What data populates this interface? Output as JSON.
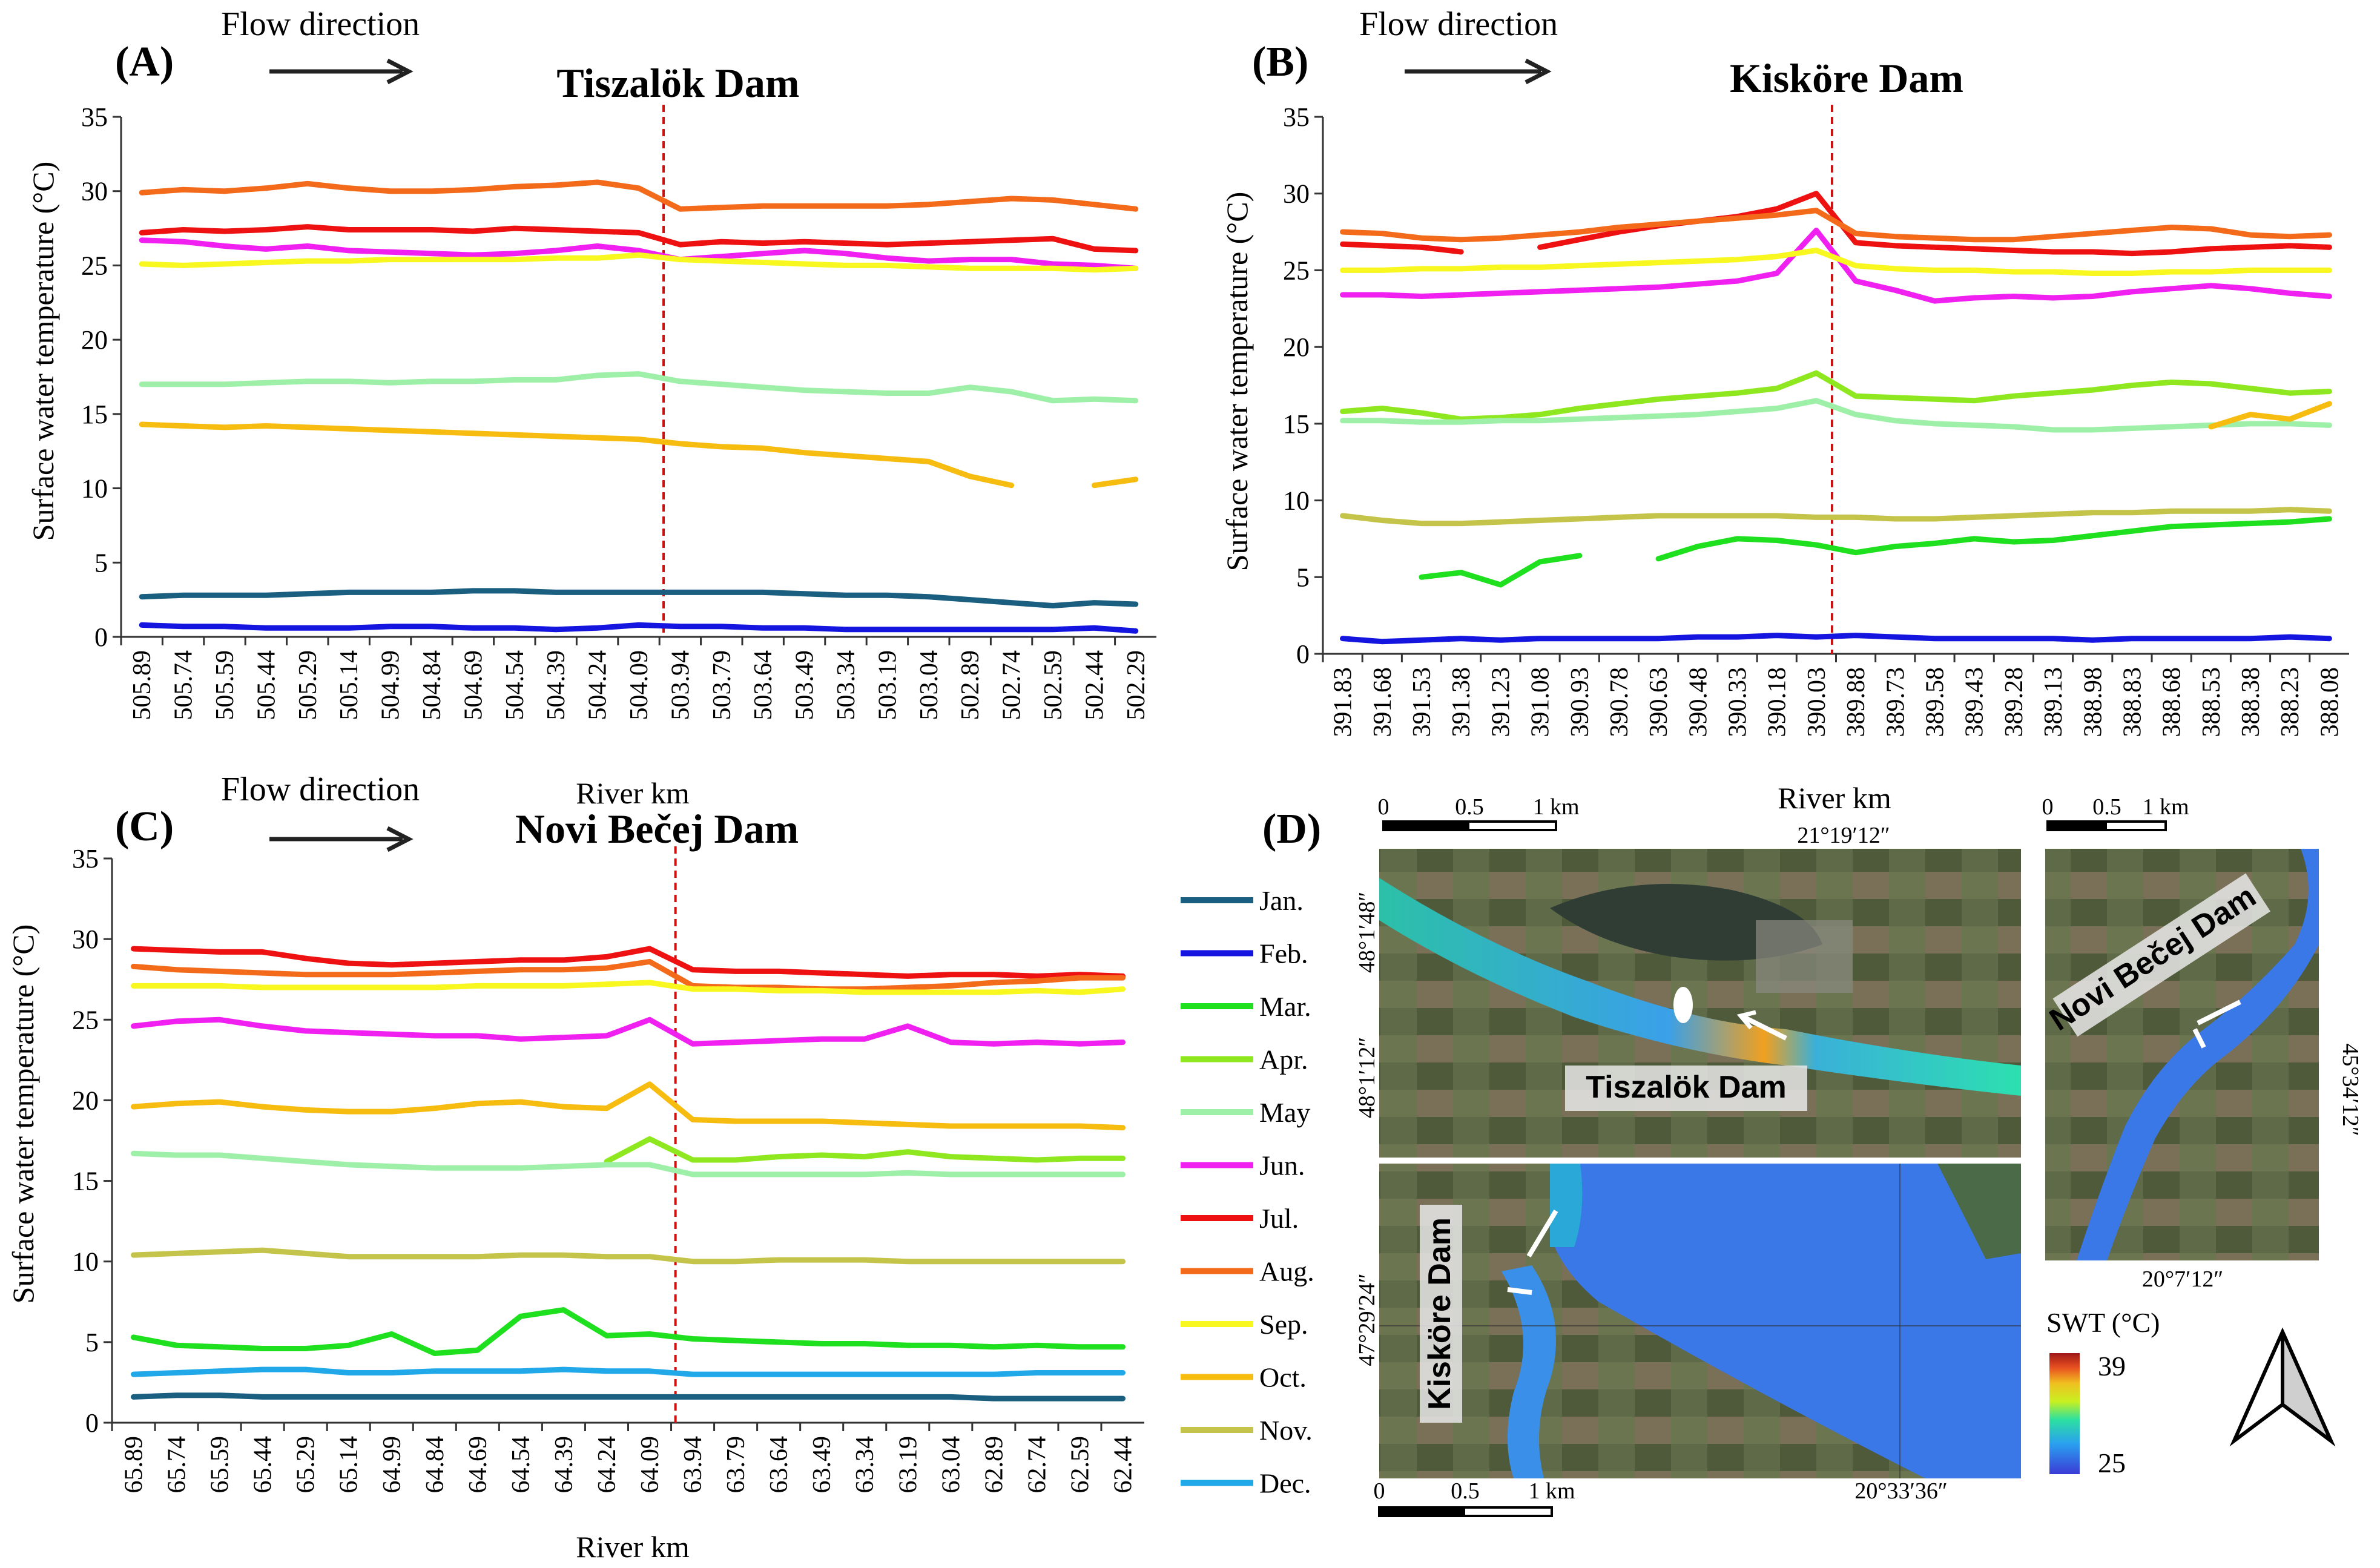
{
  "months": [
    {
      "key": "jan",
      "label": "Jan.",
      "color": "#1a5e80"
    },
    {
      "key": "feb",
      "label": "Feb.",
      "color": "#1515e0"
    },
    {
      "key": "mar",
      "label": "Mar.",
      "color": "#1fe01f"
    },
    {
      "key": "apr",
      "label": "Apr.",
      "color": "#8fe81f"
    },
    {
      "key": "may",
      "label": "May",
      "color": "#9ef0a8"
    },
    {
      "key": "jun",
      "label": "Jun.",
      "color": "#f020f0"
    },
    {
      "key": "jul",
      "label": "Jul.",
      "color": "#ee1111"
    },
    {
      "key": "aug",
      "label": "Aug.",
      "color": "#f36a1a"
    },
    {
      "key": "sep",
      "label": "Sep.",
      "color": "#f8f820"
    },
    {
      "key": "oct",
      "label": "Oct.",
      "color": "#f7bc10"
    },
    {
      "key": "nov",
      "label": "Nov.",
      "color": "#c4c44a"
    },
    {
      "key": "dec",
      "label": "Dec.",
      "color": "#20a8e8"
    }
  ],
  "flow_direction_label": "Flow direction",
  "chart_data": [
    {
      "type": "line",
      "panel": "(A)",
      "title": "Tiszalök Dam",
      "ylabel": "Surface water temperature (°C)",
      "xlabel": "",
      "ylim": [
        0,
        35
      ],
      "yticks": [
        0,
        5,
        10,
        15,
        20,
        25,
        30,
        35
      ],
      "categories": [
        "505.89",
        "505.74",
        "505.59",
        "505.44",
        "505.29",
        "505.14",
        "504.99",
        "504.84",
        "504.69",
        "504.54",
        "504.39",
        "504.24",
        "504.09",
        "503.94",
        "503.79",
        "503.64",
        "503.49",
        "503.34",
        "503.19",
        "503.04",
        "502.89",
        "502.74",
        "502.59",
        "502.44",
        "502.29"
      ],
      "dam_index": 12.6,
      "series": [
        {
          "name": "Jan.",
          "values": [
            2.7,
            2.8,
            2.8,
            2.8,
            2.9,
            3.0,
            3.0,
            3.0,
            3.1,
            3.1,
            3.0,
            3.0,
            3.0,
            3.0,
            3.0,
            3.0,
            2.9,
            2.8,
            2.8,
            2.7,
            2.5,
            2.3,
            2.1,
            2.3,
            2.2
          ]
        },
        {
          "name": "Feb.",
          "values": [
            0.8,
            0.7,
            0.7,
            0.6,
            0.6,
            0.6,
            0.7,
            0.7,
            0.6,
            0.6,
            0.5,
            0.6,
            0.8,
            0.7,
            0.7,
            0.6,
            0.6,
            0.5,
            0.5,
            0.5,
            0.5,
            0.5,
            0.5,
            0.6,
            0.4
          ]
        },
        {
          "name": "May",
          "values": [
            17.0,
            17.0,
            17.0,
            17.1,
            17.2,
            17.2,
            17.1,
            17.2,
            17.2,
            17.3,
            17.3,
            17.6,
            17.7,
            17.2,
            17.0,
            16.8,
            16.6,
            16.5,
            16.4,
            16.4,
            16.8,
            16.5,
            15.9,
            16.0,
            15.9
          ]
        },
        {
          "name": "Jun.",
          "values": [
            26.7,
            26.6,
            26.3,
            26.1,
            26.3,
            26.0,
            25.9,
            25.8,
            25.7,
            25.8,
            26.0,
            26.3,
            26.0,
            25.4,
            25.6,
            25.8,
            26.0,
            25.8,
            25.5,
            25.3,
            25.4,
            25.4,
            25.1,
            25.0,
            24.8
          ]
        },
        {
          "name": "Jul.",
          "values": [
            27.2,
            27.4,
            27.3,
            27.4,
            27.6,
            27.4,
            27.4,
            27.4,
            27.3,
            27.5,
            27.4,
            27.3,
            27.2,
            26.4,
            26.6,
            26.5,
            26.6,
            26.5,
            26.4,
            26.5,
            26.6,
            26.7,
            26.8,
            26.1,
            26.0
          ]
        },
        {
          "name": "Aug.",
          "values": [
            29.9,
            30.1,
            30.0,
            30.2,
            30.5,
            30.2,
            30.0,
            30.0,
            30.1,
            30.3,
            30.4,
            30.6,
            30.2,
            28.8,
            28.9,
            29.0,
            29.0,
            29.0,
            29.0,
            29.1,
            29.3,
            29.5,
            29.4,
            29.1,
            28.8
          ]
        },
        {
          "name": "Sep.",
          "values": [
            25.1,
            25.0,
            25.1,
            25.2,
            25.3,
            25.3,
            25.4,
            25.4,
            25.4,
            25.4,
            25.5,
            25.5,
            25.7,
            25.4,
            25.3,
            25.2,
            25.1,
            25.0,
            25.0,
            24.9,
            24.8,
            24.8,
            24.8,
            24.7,
            24.8
          ]
        },
        {
          "name": "Oct.",
          "values": [
            14.3,
            14.2,
            14.1,
            14.2,
            14.1,
            14.0,
            13.9,
            13.8,
            13.7,
            13.6,
            13.5,
            13.4,
            13.3,
            13.0,
            12.8,
            12.7,
            12.4,
            12.2,
            12.0,
            11.8,
            10.8,
            10.2,
            null,
            10.2,
            10.6
          ]
        }
      ]
    },
    {
      "type": "line",
      "panel": "(B)",
      "title": "Kisköre Dam",
      "ylabel": "Surface water temperature (°C)",
      "xlabel": "River km",
      "ylim": [
        0,
        35
      ],
      "yticks": [
        0,
        5,
        10,
        15,
        20,
        25,
        30,
        35
      ],
      "categories": [
        "391.83",
        "391.68",
        "391.53",
        "391.38",
        "391.23",
        "391.08",
        "390.93",
        "390.78",
        "390.63",
        "390.48",
        "390.33",
        "390.18",
        "390.03",
        "389.88",
        "389.73",
        "389.58",
        "389.43",
        "389.28",
        "389.13",
        "388.98",
        "388.83",
        "388.68",
        "388.53",
        "388.38",
        "388.23",
        "388.08"
      ],
      "dam_index": 12.4,
      "series": [
        {
          "name": "Feb.",
          "values": [
            1.0,
            0.8,
            0.9,
            1.0,
            0.9,
            1.0,
            1.0,
            1.0,
            1.0,
            1.1,
            1.1,
            1.2,
            1.1,
            1.2,
            1.1,
            1.0,
            1.0,
            1.0,
            1.0,
            0.9,
            1.0,
            1.0,
            1.0,
            1.0,
            1.1,
            1.0
          ]
        },
        {
          "name": "Mar.",
          "values": [
            null,
            null,
            5.0,
            5.3,
            4.5,
            6.0,
            6.4,
            null,
            6.2,
            7.0,
            7.5,
            7.4,
            7.1,
            6.6,
            7.0,
            7.2,
            7.5,
            7.3,
            7.4,
            7.7,
            8.0,
            8.3,
            8.4,
            8.5,
            8.6,
            8.8
          ]
        },
        {
          "name": "Apr.",
          "values": [
            15.8,
            16.0,
            15.7,
            15.3,
            15.4,
            15.6,
            16.0,
            16.3,
            16.6,
            16.8,
            17.0,
            17.3,
            18.3,
            16.8,
            16.7,
            16.6,
            16.5,
            16.8,
            17.0,
            17.2,
            17.5,
            17.7,
            17.6,
            17.3,
            17.0,
            17.1
          ]
        },
        {
          "name": "May",
          "values": [
            15.2,
            15.2,
            15.1,
            15.1,
            15.2,
            15.2,
            15.3,
            15.4,
            15.5,
            15.6,
            15.8,
            16.0,
            16.5,
            15.6,
            15.2,
            15.0,
            14.9,
            14.8,
            14.6,
            14.6,
            14.7,
            14.8,
            14.9,
            15.0,
            15.0,
            14.9
          ]
        },
        {
          "name": "Jun.",
          "values": [
            23.4,
            23.4,
            23.3,
            23.4,
            23.5,
            23.6,
            23.7,
            23.8,
            23.9,
            24.1,
            24.3,
            24.8,
            27.6,
            24.3,
            23.7,
            23.0,
            23.2,
            23.3,
            23.2,
            23.3,
            23.6,
            23.8,
            24.0,
            23.8,
            23.5,
            23.3
          ]
        },
        {
          "name": "Jul.",
          "values": [
            26.7,
            26.6,
            26.5,
            26.2,
            null,
            26.5,
            27.0,
            27.5,
            27.9,
            28.2,
            28.5,
            29.0,
            30.0,
            26.8,
            26.6,
            26.5,
            26.4,
            26.3,
            26.2,
            26.2,
            26.1,
            26.2,
            26.4,
            26.5,
            26.6,
            26.5
          ]
        },
        {
          "name": "Aug.",
          "values": [
            27.5,
            27.4,
            27.1,
            27.0,
            27.1,
            27.3,
            27.5,
            27.8,
            28.0,
            28.2,
            28.4,
            28.6,
            28.9,
            27.4,
            27.2,
            27.1,
            27.0,
            27.0,
            27.2,
            27.4,
            27.6,
            27.8,
            27.7,
            27.3,
            27.2,
            27.3
          ]
        },
        {
          "name": "Sep.",
          "values": [
            25.0,
            25.0,
            25.1,
            25.1,
            25.2,
            25.2,
            25.3,
            25.4,
            25.5,
            25.6,
            25.7,
            25.9,
            26.3,
            25.3,
            25.1,
            25.0,
            25.0,
            24.9,
            24.9,
            24.8,
            24.8,
            24.9,
            24.9,
            25.0,
            25.0,
            25.0
          ]
        },
        {
          "name": "Oct.",
          "values": [
            null,
            null,
            null,
            null,
            null,
            null,
            null,
            null,
            null,
            null,
            null,
            null,
            null,
            null,
            null,
            null,
            null,
            null,
            null,
            null,
            null,
            null,
            14.8,
            15.6,
            15.3,
            16.3
          ]
        },
        {
          "name": "Nov.",
          "values": [
            9.0,
            8.7,
            8.5,
            8.5,
            8.6,
            8.7,
            8.8,
            8.9,
            9.0,
            9.0,
            9.0,
            9.0,
            8.9,
            8.9,
            8.8,
            8.8,
            8.9,
            9.0,
            9.1,
            9.2,
            9.2,
            9.3,
            9.3,
            9.3,
            9.4,
            9.3
          ]
        }
      ]
    },
    {
      "type": "line",
      "panel": "(C)",
      "title": "Novi Bečej Dam",
      "ylabel": "Surface water temperature (°C)",
      "xlabel": "River km",
      "ylim": [
        0,
        35
      ],
      "yticks": [
        0,
        5,
        10,
        15,
        20,
        25,
        30,
        35
      ],
      "categories": [
        "65.89",
        "65.74",
        "65.59",
        "65.44",
        "65.29",
        "65.14",
        "64.99",
        "64.84",
        "64.69",
        "64.54",
        "64.39",
        "64.24",
        "64.09",
        "63.94",
        "63.79",
        "63.64",
        "63.49",
        "63.34",
        "63.19",
        "63.04",
        "62.89",
        "62.74",
        "62.59",
        "62.44"
      ],
      "dam_index": 12.6,
      "series": [
        {
          "name": "Jan.",
          "values": [
            1.6,
            1.7,
            1.7,
            1.6,
            1.6,
            1.6,
            1.6,
            1.6,
            1.6,
            1.6,
            1.6,
            1.6,
            1.6,
            1.6,
            1.6,
            1.6,
            1.6,
            1.6,
            1.6,
            1.6,
            1.5,
            1.5,
            1.5,
            1.5
          ]
        },
        {
          "name": "Mar.",
          "values": [
            5.3,
            4.8,
            4.7,
            4.6,
            4.6,
            4.8,
            5.5,
            4.3,
            4.5,
            6.6,
            7.0,
            5.4,
            5.5,
            5.2,
            5.1,
            5.0,
            4.9,
            4.9,
            4.8,
            4.8,
            4.7,
            4.8,
            4.7,
            4.7
          ]
        },
        {
          "name": "Apr.",
          "values": [
            null,
            null,
            null,
            null,
            null,
            null,
            null,
            null,
            null,
            null,
            null,
            16.2,
            17.6,
            16.3,
            16.3,
            16.5,
            16.6,
            16.5,
            16.8,
            16.5,
            16.4,
            16.3,
            16.4,
            16.4
          ]
        },
        {
          "name": "May",
          "values": [
            16.7,
            16.6,
            16.6,
            16.4,
            16.2,
            16.0,
            15.9,
            15.8,
            15.8,
            15.8,
            15.9,
            16.0,
            16.0,
            15.4,
            15.4,
            15.4,
            15.4,
            15.4,
            15.5,
            15.4,
            15.4,
            15.4,
            15.4,
            15.4
          ]
        },
        {
          "name": "Jun.",
          "values": [
            24.6,
            24.9,
            25.0,
            24.6,
            24.3,
            24.2,
            24.1,
            24.0,
            24.0,
            23.8,
            23.9,
            24.0,
            25.0,
            23.5,
            23.6,
            23.7,
            23.8,
            23.8,
            24.6,
            23.6,
            23.5,
            23.6,
            23.5,
            23.6
          ]
        },
        {
          "name": "Jul.",
          "values": [
            29.4,
            29.3,
            29.2,
            29.2,
            28.8,
            28.5,
            28.4,
            28.5,
            28.6,
            28.7,
            28.7,
            28.9,
            29.4,
            28.1,
            28.0,
            28.0,
            27.9,
            27.8,
            27.7,
            27.8,
            27.8,
            27.7,
            27.8,
            27.7
          ]
        },
        {
          "name": "Aug.",
          "values": [
            28.3,
            28.1,
            28.0,
            27.9,
            27.8,
            27.8,
            27.8,
            27.9,
            28.0,
            28.1,
            28.1,
            28.2,
            28.6,
            27.1,
            27.0,
            27.0,
            26.9,
            26.9,
            27.0,
            27.1,
            27.3,
            27.4,
            27.6,
            27.6
          ]
        },
        {
          "name": "Sep.",
          "values": [
            27.1,
            27.1,
            27.1,
            27.0,
            27.0,
            27.0,
            27.0,
            27.0,
            27.1,
            27.1,
            27.1,
            27.2,
            27.3,
            26.9,
            26.9,
            26.8,
            26.8,
            26.7,
            26.7,
            26.7,
            26.7,
            26.8,
            26.7,
            26.9
          ]
        },
        {
          "name": "Oct.",
          "values": [
            19.6,
            19.8,
            19.9,
            19.6,
            19.4,
            19.3,
            19.3,
            19.5,
            19.8,
            19.9,
            19.6,
            19.5,
            21.0,
            18.8,
            18.7,
            18.7,
            18.7,
            18.6,
            18.5,
            18.4,
            18.4,
            18.4,
            18.4,
            18.3
          ]
        },
        {
          "name": "Nov.",
          "values": [
            10.4,
            10.5,
            10.6,
            10.7,
            10.5,
            10.3,
            10.3,
            10.3,
            10.3,
            10.4,
            10.4,
            10.3,
            10.3,
            10.0,
            10.0,
            10.1,
            10.1,
            10.1,
            10.0,
            10.0,
            10.0,
            10.0,
            10.0,
            10.0
          ]
        },
        {
          "name": "Dec.",
          "values": [
            3.0,
            3.1,
            3.2,
            3.3,
            3.3,
            3.1,
            3.1,
            3.2,
            3.2,
            3.2,
            3.3,
            3.2,
            3.2,
            3.0,
            3.0,
            3.0,
            3.0,
            3.0,
            3.0,
            3.0,
            3.0,
            3.1,
            3.1,
            3.1
          ]
        }
      ]
    }
  ],
  "map": {
    "panel": "(D)",
    "scale_labels": [
      "0",
      "0.5",
      "1 km"
    ],
    "tiszalok": {
      "label": "Tiszalök Dam",
      "lon": "21°19′12″",
      "lat_top": "48°1′48″",
      "lat_bottom": "48°1′12″"
    },
    "novibecej": {
      "label": "Novi Bečej Dam",
      "lon": "20°7′12″",
      "lat": "45°34′12″"
    },
    "kiskore": {
      "label": "Kisköre Dam",
      "lon": "20°33′36″",
      "lat": "47°29′24″"
    },
    "swt_legend": {
      "title": "SWT (°C)",
      "max": "39",
      "min": "25"
    }
  }
}
